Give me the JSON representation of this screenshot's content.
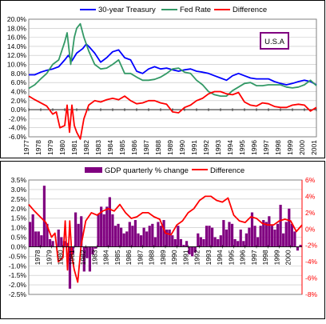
{
  "chart_data": [
    {
      "type": "line",
      "title": "",
      "annotation": "U.S.A",
      "legend": {
        "placement": "top",
        "entries": [
          "30-year Treasury",
          "Fed Rate",
          "Difference"
        ]
      },
      "colors": {
        "treasury": "#0000ff",
        "fed": "#339966",
        "difference": "#ff0000",
        "annotation_border": "#800080"
      },
      "grid": true,
      "ylim": [
        -0.06,
        0.2
      ],
      "yticks": [
        "20.0%",
        "18.0%",
        "16.0%",
        "14.0%",
        "12.0%",
        "10.0%",
        "8.0%",
        "6.0%",
        "4.0%",
        "2.0%",
        "0.0%",
        "-2.0%",
        "-4.0%",
        "-6.0%"
      ],
      "xlim": [
        1977,
        2001
      ],
      "xticks": [
        "1977",
        "1978",
        "1979",
        "1980",
        "1981",
        "1982",
        "1983",
        "1984",
        "1985",
        "1986",
        "1987",
        "1988",
        "1989",
        "1990",
        "1991",
        "1992",
        "1993",
        "1994",
        "1995",
        "1996",
        "1997",
        "1998",
        "1999",
        "2000",
        "2001"
      ],
      "series": [
        {
          "name": "30-year Treasury",
          "key": "treasury",
          "x": [
            1977,
            1977.5,
            1978,
            1978.5,
            1979,
            1979.5,
            1980,
            1980.3,
            1980.6,
            1981,
            1981.5,
            1981.8,
            1982,
            1982.5,
            1983,
            1983.5,
            1984,
            1984.5,
            1985,
            1985.5,
            1986,
            1986.5,
            1987,
            1987.5,
            1988,
            1988.5,
            1989,
            1989.5,
            1990,
            1990.5,
            1991,
            1991.5,
            1992,
            1992.5,
            1993,
            1993.5,
            1994,
            1994.5,
            1995,
            1995.5,
            1996,
            1996.5,
            1997,
            1997.5,
            1998,
            1998.5,
            1999,
            1999.5,
            2000,
            2000.5,
            2001
          ],
          "y": [
            0.077,
            0.077,
            0.083,
            0.087,
            0.09,
            0.095,
            0.11,
            0.12,
            0.108,
            0.125,
            0.135,
            0.145,
            0.14,
            0.125,
            0.105,
            0.115,
            0.128,
            0.132,
            0.115,
            0.11,
            0.085,
            0.08,
            0.09,
            0.095,
            0.09,
            0.092,
            0.088,
            0.085,
            0.088,
            0.09,
            0.085,
            0.083,
            0.08,
            0.075,
            0.07,
            0.065,
            0.075,
            0.08,
            0.075,
            0.07,
            0.068,
            0.068,
            0.068,
            0.062,
            0.058,
            0.055,
            0.058,
            0.062,
            0.065,
            0.062,
            0.055
          ]
        },
        {
          "name": "Fed Rate",
          "key": "fed",
          "x": [
            1977,
            1977.5,
            1978,
            1978.5,
            1979,
            1979.5,
            1980,
            1980.2,
            1980.5,
            1980.8,
            1981,
            1981.3,
            1981.6,
            1982,
            1982.5,
            1983,
            1983.5,
            1984,
            1984.5,
            1985,
            1985.5,
            1986,
            1986.5,
            1987,
            1987.5,
            1988,
            1988.5,
            1989,
            1989.5,
            1990,
            1990.5,
            1991,
            1991.5,
            1992,
            1992.5,
            1993,
            1993.5,
            1994,
            1994.5,
            1995,
            1995.5,
            1996,
            1996.5,
            1997,
            1997.5,
            1998,
            1998.5,
            1999,
            1999.5,
            2000,
            2000.5,
            2001
          ],
          "y": [
            0.047,
            0.055,
            0.068,
            0.08,
            0.1,
            0.11,
            0.15,
            0.17,
            0.1,
            0.16,
            0.18,
            0.19,
            0.16,
            0.13,
            0.1,
            0.09,
            0.092,
            0.1,
            0.11,
            0.08,
            0.08,
            0.072,
            0.065,
            0.065,
            0.067,
            0.072,
            0.08,
            0.09,
            0.092,
            0.083,
            0.08,
            0.065,
            0.055,
            0.04,
            0.033,
            0.03,
            0.03,
            0.042,
            0.05,
            0.058,
            0.06,
            0.053,
            0.053,
            0.055,
            0.055,
            0.055,
            0.05,
            0.048,
            0.05,
            0.055,
            0.065,
            0.053
          ]
        },
        {
          "name": "Difference",
          "key": "difference",
          "x": [
            1977,
            1977.5,
            1978,
            1978.5,
            1979,
            1979.3,
            1979.6,
            1980,
            1980.2,
            1980.4,
            1980.6,
            1980.8,
            1981,
            1981.3,
            1981.6,
            1982,
            1982.5,
            1983,
            1983.5,
            1984,
            1984.5,
            1985,
            1985.5,
            1986,
            1986.5,
            1987,
            1987.5,
            1988,
            1988.5,
            1989,
            1989.5,
            1990,
            1990.5,
            1991,
            1991.5,
            1992,
            1992.5,
            1993,
            1993.5,
            1994,
            1994.5,
            1995,
            1995.5,
            1996,
            1996.5,
            1997,
            1997.5,
            1998,
            1998.5,
            1999,
            1999.5,
            2000,
            2000.5,
            2001
          ],
          "y": [
            0.03,
            0.022,
            0.015,
            0.008,
            -0.01,
            -0.005,
            -0.04,
            -0.035,
            0.01,
            -0.05,
            0.01,
            -0.035,
            -0.05,
            -0.065,
            -0.02,
            0.01,
            0.02,
            0.017,
            0.022,
            0.025,
            0.022,
            0.03,
            0.02,
            0.013,
            0.015,
            0.02,
            0.02,
            0.015,
            0.012,
            -0.005,
            -0.007,
            0.005,
            0.01,
            0.02,
            0.025,
            0.035,
            0.04,
            0.04,
            0.035,
            0.033,
            0.038,
            0.017,
            0.01,
            0.008,
            0.015,
            0.013,
            0.007,
            0.005,
            0.005,
            0.01,
            0.012,
            0.01,
            -0.003,
            0.005
          ]
        }
      ]
    },
    {
      "type": "bar",
      "title": "",
      "legend": {
        "placement": "top",
        "entries": [
          "GDP quarterly % change",
          "Difference"
        ]
      },
      "colors": {
        "gdp": "#800080",
        "difference": "#ff0000"
      },
      "grid": true,
      "ylim": [
        -0.025,
        0.035
      ],
      "yticks": [
        "3.5%",
        "3.0%",
        "2.5%",
        "2.0%",
        "1.5%",
        "1.0%",
        "0.5%",
        "0.0%",
        "-0.5%",
        "-1.0%",
        "-1.5%",
        "-2.0%",
        "-2.5%"
      ],
      "y2lim": [
        -0.08,
        0.06
      ],
      "y2ticks": [
        "6%",
        "4%",
        "2%",
        "0%",
        "-2%",
        "-4%",
        "-6%",
        "-8%"
      ],
      "xlim": [
        1977,
        2001
      ],
      "xticks": [
        "1978",
        "1979",
        "1980",
        "1981",
        "1982",
        "1983",
        "1984",
        "1985",
        "1986",
        "1987",
        "1988",
        "1989",
        "1990",
        "1991",
        "1992",
        "1993",
        "1994",
        "1995",
        "1996",
        "1997",
        "1998",
        "1999",
        "2000"
      ],
      "gdp_series": {
        "name": "GDP quarterly % change",
        "start": 1977,
        "step": 0.25,
        "values": [
          0.013,
          0.017,
          0.008,
          0.008,
          0.006,
          0.032,
          0.012,
          0.004,
          0.003,
          0.0,
          0.009,
          0.005,
          0.003,
          0.002,
          -0.022,
          -0.004,
          0.018,
          0.012,
          0.016,
          -0.013,
          -0.006,
          -0.013,
          -0.004,
          -0.001,
          0.017,
          0.021,
          0.017,
          0.021,
          0.026,
          0.017,
          0.011,
          0.012,
          0.01,
          0.007,
          0.008,
          0.013,
          0.011,
          0.014,
          0.007,
          0.006,
          0.01,
          0.008,
          0.011,
          0.012,
          0.005,
          0.013,
          0.011,
          0.014,
          0.009,
          0.009,
          0.006,
          0.004,
          0.011,
          0.004,
          0.001,
          0.003,
          -0.004,
          -0.005,
          -0.003,
          0.007,
          0.005,
          0.004,
          0.011,
          0.011,
          0.01,
          0.005,
          0.004,
          0.006,
          0.014,
          0.009,
          0.013,
          0.012,
          0.004,
          0.003,
          0.009,
          0.003,
          0.007,
          0.01,
          0.018,
          0.011,
          0.005,
          0.011,
          0.014,
          0.013,
          0.016,
          0.011,
          0.009,
          0.012,
          0.022,
          0.007,
          0.013,
          0.02,
          0.012,
          0.008,
          -0.002,
          0.001
        ]
      },
      "difference_series": {
        "name": "Difference",
        "axis": "right",
        "x": [
          1977,
          1977.5,
          1978,
          1978.5,
          1979,
          1979.3,
          1979.6,
          1980,
          1980.2,
          1980.4,
          1980.6,
          1980.8,
          1981,
          1981.3,
          1981.6,
          1982,
          1982.5,
          1983,
          1983.5,
          1984,
          1984.5,
          1985,
          1985.5,
          1986,
          1986.5,
          1987,
          1987.5,
          1988,
          1988.5,
          1989,
          1989.5,
          1990,
          1990.5,
          1991,
          1991.5,
          1992,
          1992.5,
          1993,
          1993.5,
          1994,
          1994.5,
          1995,
          1995.5,
          1996,
          1996.5,
          1997,
          1997.5,
          1998,
          1998.5,
          1999,
          1999.5,
          2000,
          2000.5,
          2001
        ],
        "y": [
          0.03,
          0.022,
          0.015,
          0.008,
          -0.01,
          -0.005,
          -0.04,
          -0.035,
          0.01,
          -0.05,
          0.01,
          -0.035,
          -0.05,
          -0.065,
          -0.02,
          0.01,
          0.02,
          0.017,
          0.022,
          0.025,
          0.022,
          0.03,
          0.02,
          0.013,
          0.015,
          0.02,
          0.02,
          0.015,
          0.012,
          -0.005,
          -0.007,
          0.005,
          0.01,
          0.02,
          0.025,
          0.035,
          0.04,
          0.04,
          0.035,
          0.033,
          0.038,
          0.017,
          0.01,
          0.008,
          0.015,
          0.013,
          0.007,
          0.005,
          0.005,
          0.01,
          0.012,
          0.01,
          -0.003,
          0.005
        ]
      }
    }
  ]
}
